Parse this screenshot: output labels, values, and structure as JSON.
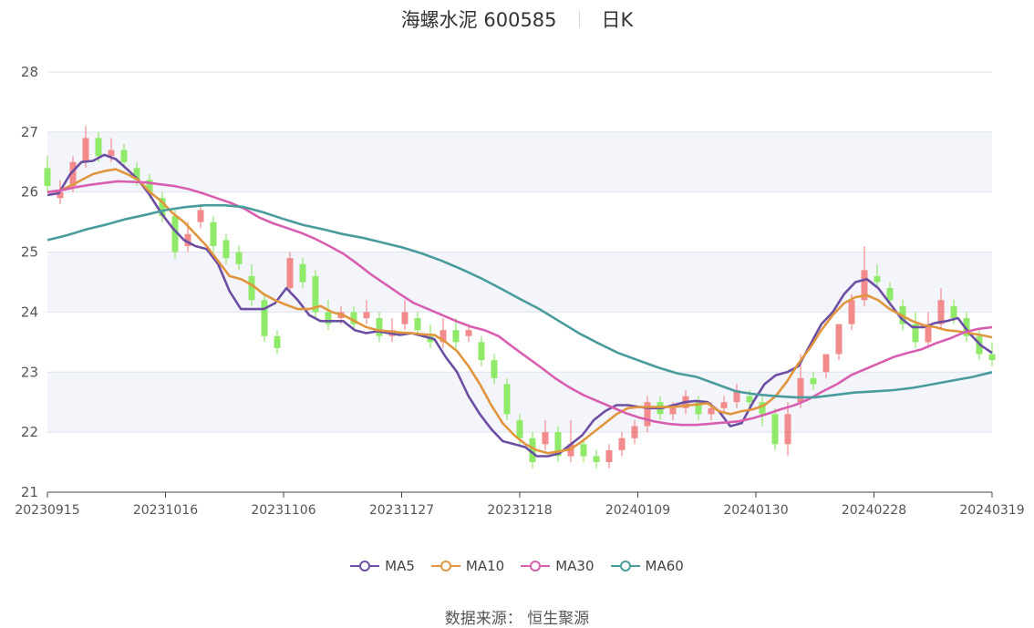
{
  "header": {
    "title": "海螺水泥 600585",
    "period": "日K"
  },
  "footer": {
    "source_label": "数据来源：",
    "source_value": "恒生聚源"
  },
  "colors": {
    "up": "#f28b8b",
    "down": "#8fea6a",
    "ma5": "#6c4ea3",
    "ma10": "#e0963f",
    "ma30": "#d85fb0",
    "ma60": "#4a9c9c",
    "band": "#f3f5fa",
    "grid": "#dde3ee"
  },
  "chart_data": {
    "type": "candlestick",
    "title": "海螺水泥 600585",
    "ylim": [
      21,
      28
    ],
    "y_ticks": [
      "21",
      "22",
      "23",
      "24",
      "25",
      "26",
      "27",
      "28"
    ],
    "x_ticks": [
      "20230915",
      "20231016",
      "20231106",
      "20231127",
      "20231218",
      "20240109",
      "20240130",
      "20240228",
      "20240319"
    ],
    "legend_position": "bottom",
    "series": [
      {
        "name": "MA5",
        "key": "ma5",
        "values": [
          25.95,
          25.98,
          26.3,
          26.5,
          26.52,
          26.62,
          26.55,
          26.38,
          26.2,
          25.95,
          25.65,
          25.4,
          25.2,
          25.1,
          25.05,
          24.8,
          24.35,
          24.05,
          24.05,
          24.05,
          24.15,
          24.4,
          24.2,
          23.95,
          23.85,
          23.85,
          23.85,
          23.7,
          23.65,
          23.68,
          23.65,
          23.62,
          23.65,
          23.6,
          23.55,
          23.25,
          23.0,
          22.6,
          22.3,
          22.05,
          21.85,
          21.8,
          21.75,
          21.6,
          21.6,
          21.65,
          21.8,
          21.95,
          22.2,
          22.35,
          22.45,
          22.45,
          22.42,
          22.4,
          22.4,
          22.45,
          22.5,
          22.52,
          22.5,
          22.35,
          22.1,
          22.15,
          22.5,
          22.8,
          22.95,
          23.0,
          23.1,
          23.45,
          23.8,
          24.0,
          24.3,
          24.5,
          24.55,
          24.4,
          24.15,
          23.9,
          23.75,
          23.75,
          23.82,
          23.85,
          23.9,
          23.65,
          23.45,
          23.32
        ]
      },
      {
        "name": "MA10",
        "key": "ma10",
        "values": [
          26.0,
          26.02,
          26.1,
          26.2,
          26.3,
          26.35,
          26.38,
          26.3,
          26.2,
          26.0,
          25.85,
          25.65,
          25.5,
          25.3,
          25.1,
          24.85,
          24.6,
          24.55,
          24.45,
          24.3,
          24.2,
          24.12,
          24.05,
          24.05,
          24.1,
          24.0,
          23.95,
          23.85,
          23.75,
          23.7,
          23.68,
          23.66,
          23.65,
          23.63,
          23.62,
          23.5,
          23.35,
          23.1,
          22.8,
          22.45,
          22.15,
          21.95,
          21.8,
          21.7,
          21.65,
          21.68,
          21.72,
          21.85,
          22.0,
          22.15,
          22.3,
          22.4,
          22.42,
          22.42,
          22.42,
          22.42,
          22.44,
          22.46,
          22.48,
          22.35,
          22.3,
          22.35,
          22.38,
          22.45,
          22.6,
          22.85,
          23.15,
          23.4,
          23.7,
          23.95,
          24.15,
          24.25,
          24.28,
          24.2,
          24.05,
          23.95,
          23.85,
          23.78,
          23.75,
          23.7,
          23.68,
          23.65,
          23.62,
          23.58
        ]
      },
      {
        "name": "MA30",
        "key": "ma30",
        "values": [
          26.0,
          26.03,
          26.08,
          26.12,
          26.15,
          26.18,
          26.17,
          26.16,
          26.13,
          26.1,
          26.05,
          25.98,
          25.9,
          25.82,
          25.72,
          25.58,
          25.48,
          25.4,
          25.32,
          25.22,
          25.1,
          24.97,
          24.8,
          24.62,
          24.46,
          24.3,
          24.15,
          24.05,
          23.95,
          23.85,
          23.76,
          23.7,
          23.6,
          23.42,
          23.25,
          23.08,
          22.9,
          22.75,
          22.62,
          22.52,
          22.42,
          22.32,
          22.24,
          22.18,
          22.14,
          22.12,
          22.12,
          22.14,
          22.16,
          22.18,
          22.23,
          22.3,
          22.38,
          22.45,
          22.55,
          22.68,
          22.8,
          22.95,
          23.05,
          23.15,
          23.25,
          23.32,
          23.38,
          23.48,
          23.56,
          23.66,
          23.72,
          23.75
        ]
      },
      {
        "name": "MA60",
        "key": "ma60",
        "values": [
          25.2,
          25.28,
          25.38,
          25.46,
          25.55,
          25.62,
          25.7,
          25.75,
          25.78,
          25.78,
          25.75,
          25.66,
          25.55,
          25.45,
          25.38,
          25.3,
          25.24,
          25.16,
          25.08,
          24.98,
          24.86,
          24.72,
          24.57,
          24.4,
          24.22,
          24.05,
          23.85,
          23.65,
          23.48,
          23.32,
          23.2,
          23.08,
          22.98,
          22.92,
          22.8,
          22.68,
          22.63,
          22.6,
          22.58,
          22.58,
          22.62,
          22.66,
          22.68,
          22.7,
          22.74,
          22.8,
          22.86,
          22.92,
          23.0
        ]
      }
    ],
    "candles": [
      [
        26.4,
        26.1,
        26.6,
        26.0
      ],
      [
        25.9,
        26.0,
        26.2,
        25.8
      ],
      [
        26.1,
        26.5,
        26.6,
        26.0
      ],
      [
        26.5,
        26.9,
        27.1,
        26.4
      ],
      [
        26.9,
        26.6,
        27.0,
        26.5
      ],
      [
        26.6,
        26.7,
        26.9,
        26.5
      ],
      [
        26.7,
        26.5,
        26.8,
        26.4
      ],
      [
        26.4,
        26.2,
        26.5,
        26.1
      ],
      [
        26.2,
        26.0,
        26.3,
        25.9
      ],
      [
        25.9,
        25.6,
        26.0,
        25.5
      ],
      [
        25.6,
        25.0,
        25.7,
        24.9
      ],
      [
        25.1,
        25.3,
        25.5,
        25.0
      ],
      [
        25.5,
        25.7,
        25.8,
        25.4
      ],
      [
        25.5,
        25.1,
        25.6,
        25.0
      ],
      [
        25.2,
        24.9,
        25.3,
        24.8
      ],
      [
        25.0,
        24.8,
        25.1,
        24.7
      ],
      [
        24.6,
        24.2,
        24.8,
        24.1
      ],
      [
        24.2,
        23.6,
        24.3,
        23.5
      ],
      [
        23.6,
        23.4,
        23.7,
        23.3
      ],
      [
        24.4,
        24.9,
        25.0,
        24.3
      ],
      [
        24.8,
        24.5,
        24.9,
        24.4
      ],
      [
        24.6,
        24.0,
        24.7,
        23.9
      ],
      [
        24.0,
        23.8,
        24.2,
        23.7
      ],
      [
        23.9,
        24.0,
        24.1,
        23.8
      ],
      [
        24.0,
        23.8,
        24.1,
        23.7
      ],
      [
        23.9,
        24.0,
        24.2,
        23.8
      ],
      [
        23.9,
        23.6,
        24.0,
        23.5
      ],
      [
        23.6,
        23.7,
        23.9,
        23.5
      ],
      [
        23.8,
        24.0,
        24.2,
        23.7
      ],
      [
        23.9,
        23.7,
        24.0,
        23.6
      ],
      [
        23.6,
        23.5,
        23.8,
        23.4
      ],
      [
        23.5,
        23.7,
        23.9,
        23.4
      ],
      [
        23.7,
        23.5,
        23.9,
        23.4
      ],
      [
        23.6,
        23.7,
        23.8,
        23.5
      ],
      [
        23.5,
        23.2,
        23.6,
        23.1
      ],
      [
        23.2,
        22.9,
        23.3,
        22.8
      ],
      [
        22.8,
        22.3,
        22.9,
        22.2
      ],
      [
        22.2,
        21.9,
        22.3,
        21.8
      ],
      [
        21.9,
        21.5,
        22.0,
        21.4
      ],
      [
        21.8,
        22.0,
        22.2,
        21.7
      ],
      [
        22.0,
        21.6,
        22.1,
        21.5
      ],
      [
        21.6,
        21.8,
        22.2,
        21.5
      ],
      [
        21.8,
        21.6,
        21.9,
        21.5
      ],
      [
        21.6,
        21.5,
        21.7,
        21.4
      ],
      [
        21.5,
        21.7,
        21.8,
        21.4
      ],
      [
        21.7,
        21.9,
        22.0,
        21.6
      ],
      [
        21.9,
        22.1,
        22.2,
        21.8
      ],
      [
        22.1,
        22.5,
        22.6,
        22.0
      ],
      [
        22.5,
        22.3,
        22.6,
        22.2
      ],
      [
        22.3,
        22.4,
        22.5,
        22.2
      ],
      [
        22.4,
        22.6,
        22.7,
        22.3
      ],
      [
        22.5,
        22.3,
        22.6,
        22.2
      ],
      [
        22.3,
        22.4,
        22.5,
        22.2
      ],
      [
        22.4,
        22.5,
        22.6,
        22.3
      ],
      [
        22.5,
        22.7,
        22.8,
        22.4
      ],
      [
        22.6,
        22.5,
        22.7,
        22.4
      ],
      [
        22.5,
        22.3,
        22.6,
        22.1
      ],
      [
        22.3,
        21.8,
        22.4,
        21.7
      ],
      [
        21.8,
        22.3,
        22.5,
        21.6
      ],
      [
        22.5,
        22.9,
        23.3,
        22.4
      ],
      [
        22.9,
        22.8,
        23.0,
        22.7
      ],
      [
        23.0,
        23.3,
        23.3,
        22.9
      ],
      [
        23.3,
        23.8,
        23.8,
        23.2
      ],
      [
        23.8,
        24.2,
        24.3,
        23.7
      ],
      [
        24.2,
        24.7,
        25.1,
        24.1
      ],
      [
        24.6,
        24.5,
        24.8,
        24.4
      ],
      [
        24.4,
        24.2,
        24.5,
        24.1
      ],
      [
        24.1,
        23.8,
        24.2,
        23.7
      ],
      [
        23.8,
        23.5,
        24.0,
        23.4
      ],
      [
        23.5,
        23.8,
        24.0,
        23.4
      ],
      [
        23.8,
        24.2,
        24.4,
        23.7
      ],
      [
        24.1,
        23.9,
        24.2,
        23.8
      ],
      [
        23.9,
        23.6,
        24.0,
        23.5
      ],
      [
        23.6,
        23.3,
        23.7,
        23.2
      ],
      [
        23.3,
        23.2,
        23.5,
        23.1
      ]
    ]
  }
}
